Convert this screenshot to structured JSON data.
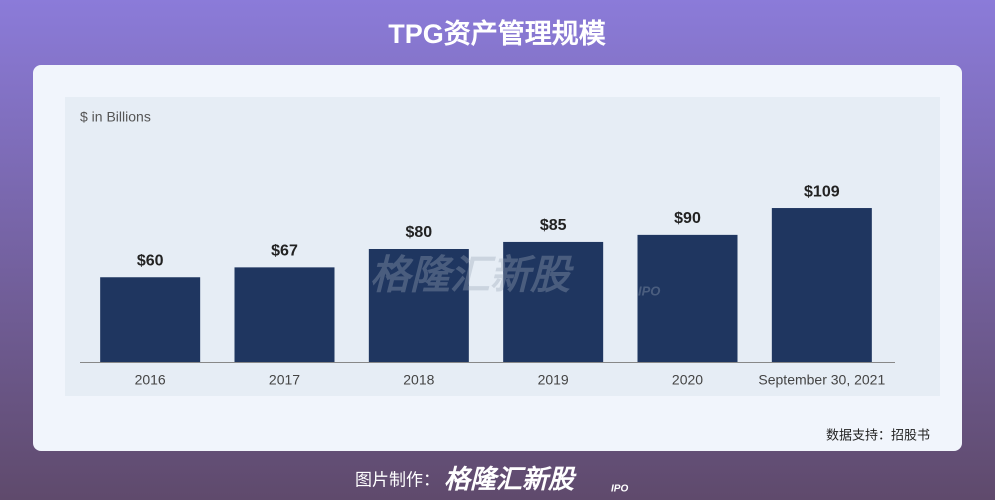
{
  "chart_data": {
    "type": "bar",
    "title": "TPG资产管理规模",
    "y_label": "$ in Billions",
    "categories": [
      "2016",
      "2017",
      "2018",
      "2019",
      "2020",
      "September 30, 2021"
    ],
    "values": [
      60,
      67,
      80,
      85,
      90,
      109
    ],
    "value_labels": [
      "$60",
      "$67",
      "$80",
      "$85",
      "$90",
      "$109"
    ],
    "color": "#1f3660",
    "ylim": [
      0,
      120
    ]
  },
  "watermark": {
    "text": "格隆汇新股",
    "sub": "IPO"
  },
  "source": "数据支持：招股书",
  "footer": {
    "label": "图片制作：",
    "logo": "格隆汇新股",
    "logo_sub": "IPO"
  }
}
